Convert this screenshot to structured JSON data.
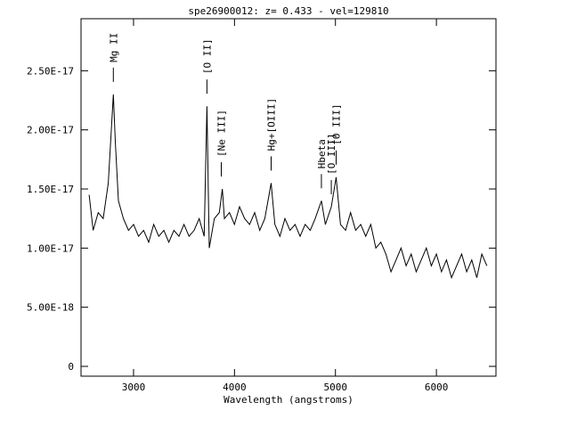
{
  "chart_data": {
    "type": "line",
    "title": "spe26900012: z= 0.433 - vel=129810",
    "xlabel": "Wavelength (angstroms)",
    "x": [
      2560,
      2600,
      2650,
      2700,
      2750,
      2800,
      2820,
      2850,
      2900,
      2950,
      3000,
      3050,
      3100,
      3150,
      3200,
      3250,
      3300,
      3350,
      3400,
      3450,
      3500,
      3550,
      3600,
      3650,
      3700,
      3727,
      3750,
      3800,
      3850,
      3880,
      3900,
      3950,
      4000,
      4050,
      4100,
      4150,
      4200,
      4250,
      4300,
      4363,
      4400,
      4450,
      4500,
      4550,
      4600,
      4650,
      4700,
      4750,
      4800,
      4861,
      4900,
      4959,
      5007,
      5050,
      5100,
      5150,
      5200,
      5250,
      5300,
      5350,
      5400,
      5450,
      5500,
      5550,
      5600,
      5650,
      5700,
      5750,
      5800,
      5850,
      5900,
      5950,
      6000,
      6050,
      6100,
      6150,
      6200,
      6250,
      6300,
      6350,
      6400,
      6450,
      6500
    ],
    "series": [
      {
        "color": "#000000",
        "values": [
          1.45e-17,
          1.15e-17,
          1.3e-17,
          1.25e-17,
          1.55e-17,
          2.3e-17,
          1.9e-17,
          1.4e-17,
          1.25e-17,
          1.15e-17,
          1.2e-17,
          1.1e-17,
          1.15e-17,
          1.05e-17,
          1.2e-17,
          1.1e-17,
          1.15e-17,
          1.05e-17,
          1.15e-17,
          1.1e-17,
          1.2e-17,
          1.1e-17,
          1.15e-17,
          1.25e-17,
          1.1e-17,
          2.2e-17,
          1e-17,
          1.25e-17,
          1.3e-17,
          1.5e-17,
          1.25e-17,
          1.3e-17,
          1.2e-17,
          1.35e-17,
          1.25e-17,
          1.2e-17,
          1.3e-17,
          1.15e-17,
          1.25e-17,
          1.55e-17,
          1.2e-17,
          1.1e-17,
          1.25e-17,
          1.15e-17,
          1.2e-17,
          1.1e-17,
          1.2e-17,
          1.15e-17,
          1.25e-17,
          1.4e-17,
          1.2e-17,
          1.35e-17,
          1.6e-17,
          1.2e-17,
          1.15e-17,
          1.3e-17,
          1.15e-17,
          1.2e-17,
          1.1e-17,
          1.2e-17,
          1e-17,
          1.05e-17,
          9.5e-18,
          8e-18,
          9e-18,
          1e-17,
          8.5e-18,
          9.5e-18,
          8e-18,
          9e-18,
          1e-17,
          8.5e-18,
          9.5e-18,
          8e-18,
          9e-18,
          7.5e-18,
          8.5e-18,
          9.5e-18,
          8e-18,
          9e-18,
          7.5e-18,
          9.5e-18,
          8.5e-18
        ]
      }
    ],
    "xlim": [
      2480,
      6590
    ],
    "xticks": [
      3000,
      4000,
      5000,
      6000
    ],
    "ylim": [
      -8.3e-19,
      2.94e-17
    ],
    "yticks": [
      0,
      {
        "value": 5e-18,
        "label": "5.00E-18"
      },
      {
        "value": 1e-17,
        "label": "1.00E-17"
      },
      {
        "value": 1.5e-17,
        "label": "1.50E-17"
      },
      {
        "value": 2e-17,
        "label": "2.00E-17"
      },
      {
        "value": 2.5e-17,
        "label": "2.50E-17"
      }
    ],
    "annotations": [
      {
        "text": "Mg II",
        "x": 2800
      },
      {
        "text": "[O II]",
        "x": 3727
      },
      {
        "text": "[Ne III]",
        "x": 3869
      },
      {
        "text": "Hg+[OIII]",
        "x": 4363
      },
      {
        "text": "Hbeta",
        "x": 4861
      },
      {
        "text": "[O III]",
        "x": 4959
      },
      {
        "text": "[O III]",
        "x": 5007
      }
    ]
  }
}
